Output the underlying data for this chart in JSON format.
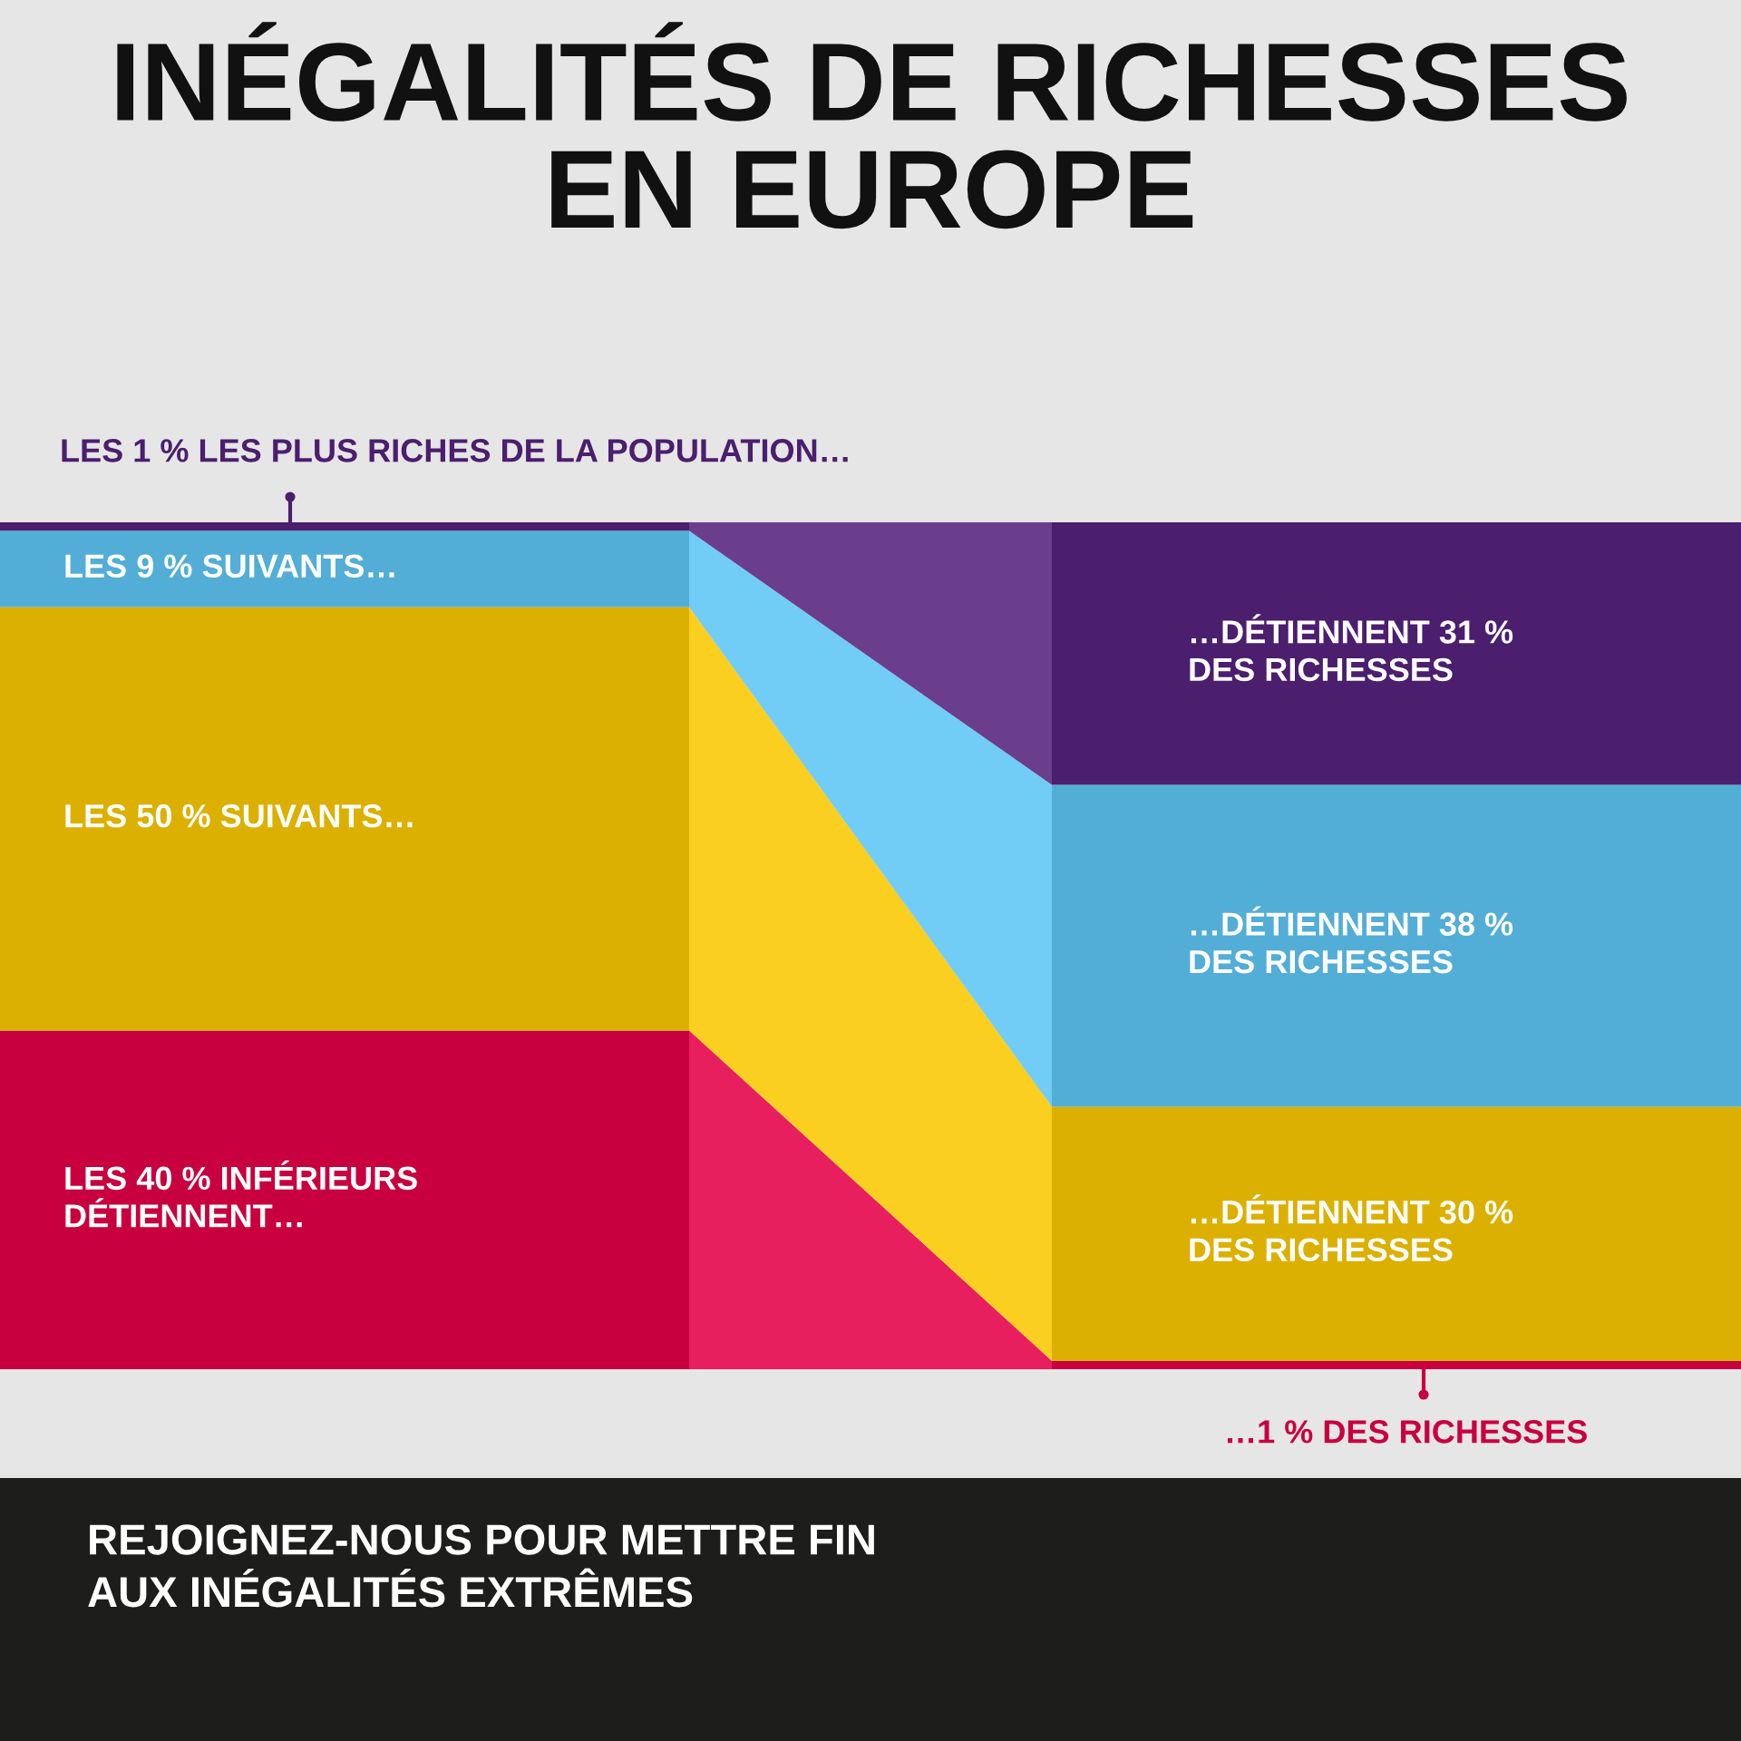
{
  "chart_data": {
    "type": "bar",
    "stacked": true,
    "title": "INÉGALITÉS DE RICHESSES\nEN EUROPE",
    "categories": [
      null,
      null
    ],
    "series": [
      {
        "color": "#c8003f",
        "values": [
          40,
          1
        ],
        "value_labels": [
          "LES 40 % INFÉRIEURS\nDÉTIENNENT…",
          "…1 % DES RICHESSES"
        ]
      },
      {
        "color": "#dcb000",
        "values": [
          50,
          30
        ],
        "value_labels": [
          "LES 50 % SUIVANTS…",
          "…DÉTIENNENT 30 %\nDES RICHESSES"
        ]
      },
      {
        "color": "#52aed6",
        "values": [
          9,
          38
        ],
        "value_labels": [
          "LES 9 % SUIVANTS…",
          "…DÉTIENNENT 38 %\nDES RICHESSES"
        ]
      },
      {
        "color": "#4b1e6e",
        "values": [
          1,
          31
        ],
        "value_labels": [
          "LES 1 % LES PLUS RICHES DE LA POPULATION…",
          "…DÉTIENNENT 31 %\nDES RICHESSES"
        ]
      }
    ],
    "ylim": [
      0,
      100
    ],
    "annotations": [
      "REJOIGNEZ-NOUS POUR METTRE FIN\nAUX INÉGALITÉS EXTRÊMES"
    ]
  }
}
